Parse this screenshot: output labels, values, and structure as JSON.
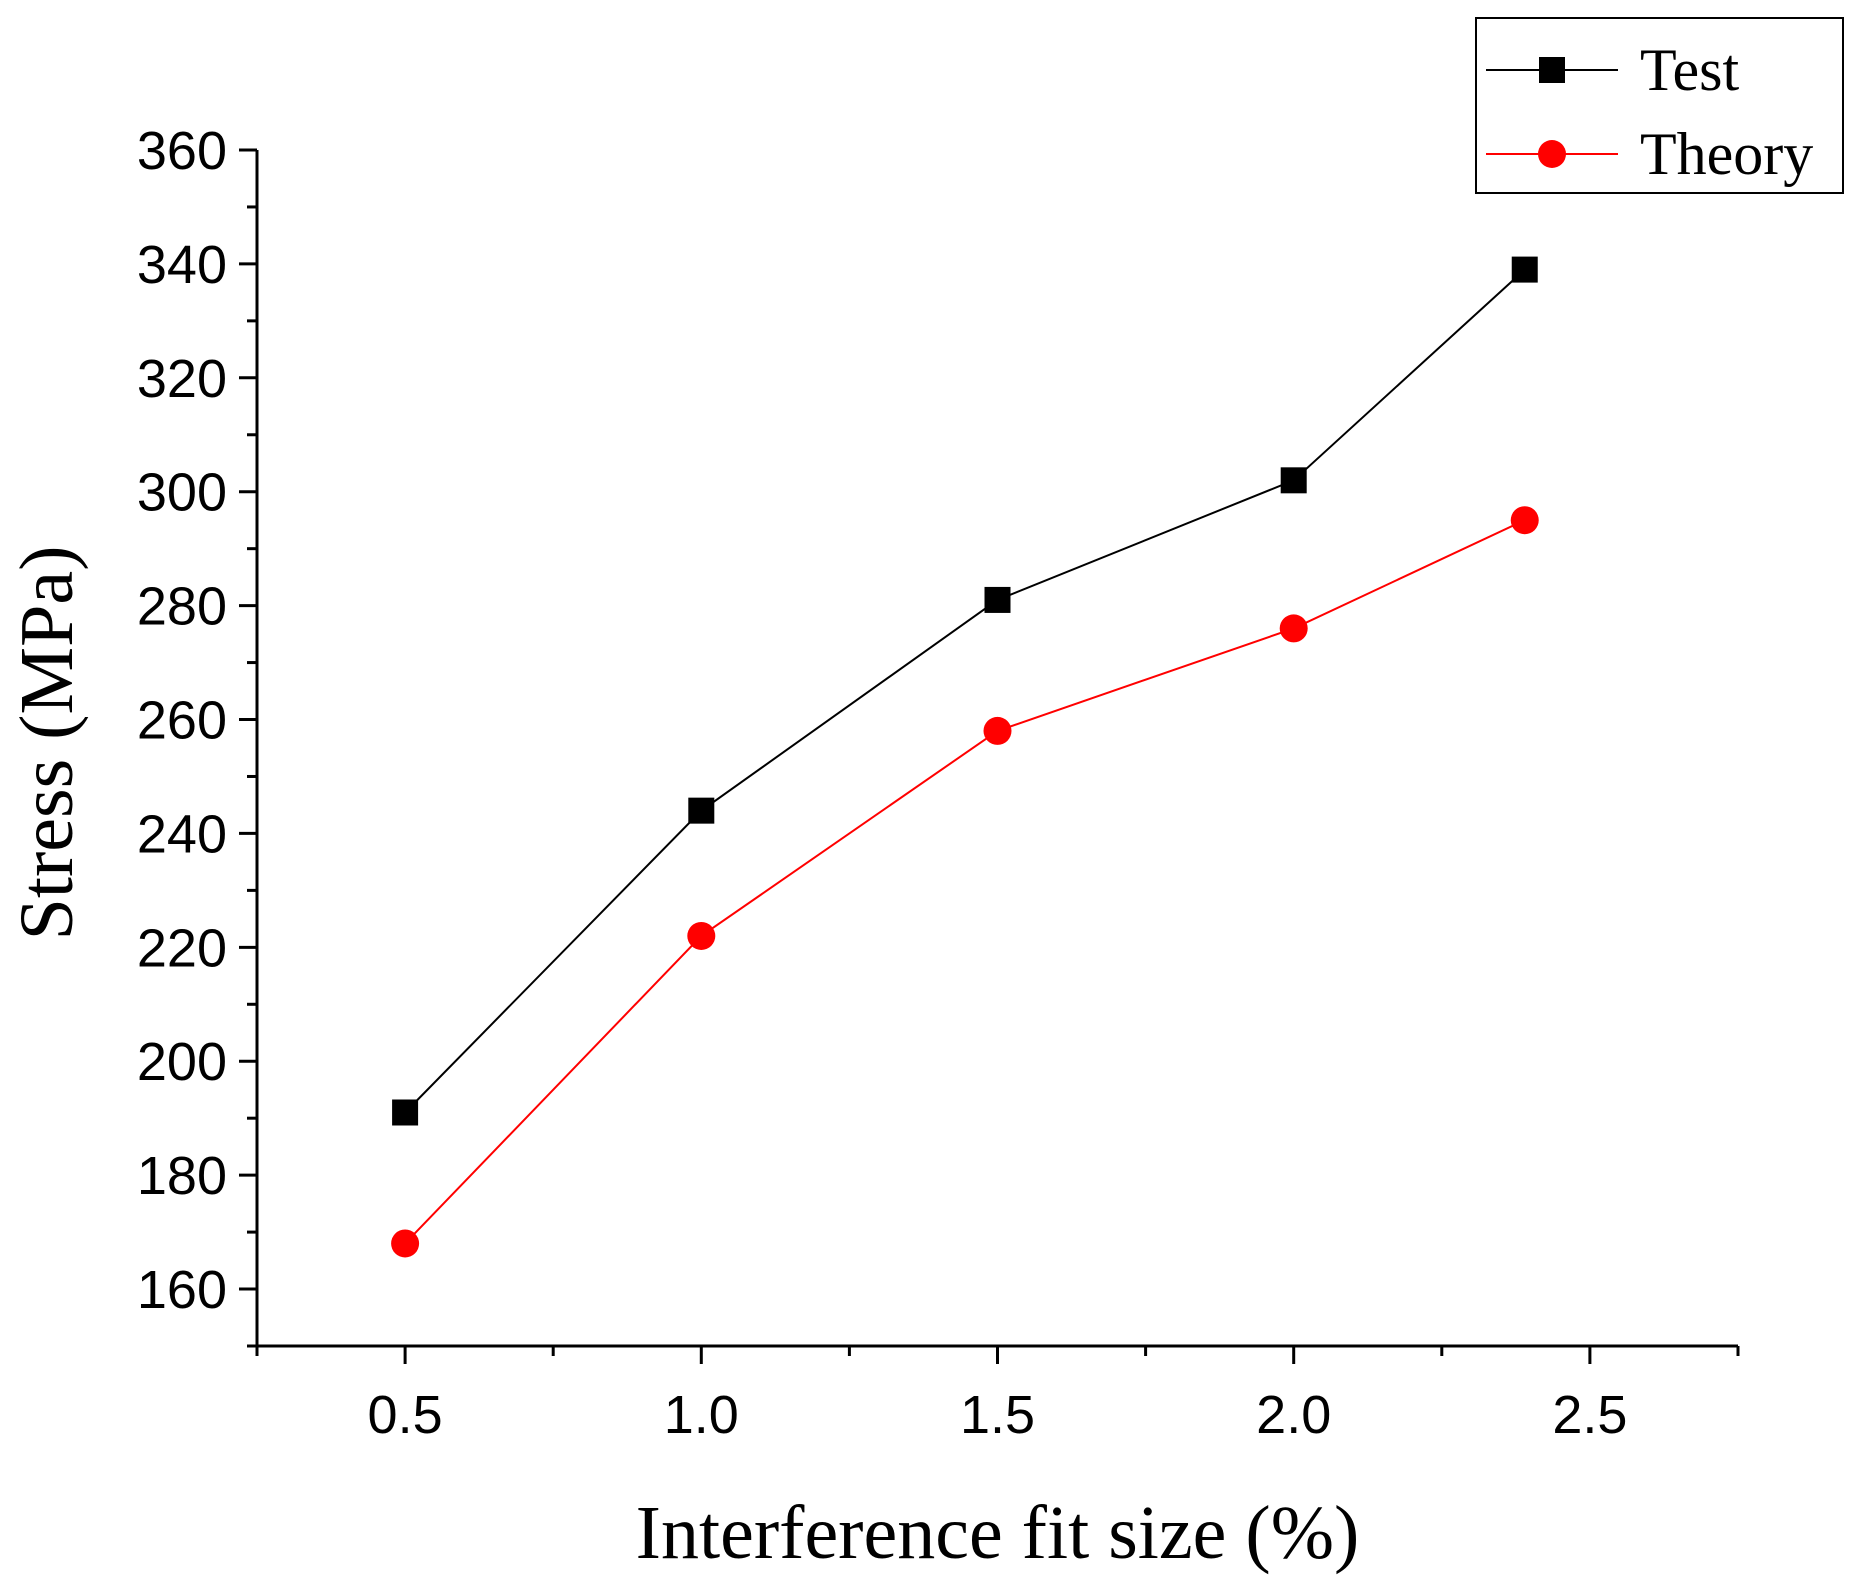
{
  "chart_data": {
    "type": "line",
    "title": "",
    "xlabel": "Interference fit size (%)",
    "ylabel": "Stress (MPa)",
    "xlim": [
      0.25,
      2.75
    ],
    "ylim": [
      150,
      360
    ],
    "x_ticks": [
      "0.5",
      "1.0",
      "1.5",
      "2.0",
      "2.5"
    ],
    "x_tick_values": [
      0.5,
      1.0,
      1.5,
      2.0,
      2.5
    ],
    "y_ticks": [
      "160",
      "180",
      "200",
      "220",
      "240",
      "260",
      "280",
      "300",
      "320",
      "340",
      "360"
    ],
    "y_tick_values": [
      160,
      180,
      200,
      220,
      240,
      260,
      280,
      300,
      320,
      340,
      360
    ],
    "grid": false,
    "legend_position": "top-right",
    "series": [
      {
        "name": "Test",
        "color": "#000000",
        "marker": "square",
        "x": [
          0.5,
          1.0,
          1.5,
          2.0,
          2.39
        ],
        "y": [
          191,
          244,
          281,
          302,
          339
        ]
      },
      {
        "name": "Theory",
        "color": "#ff0000",
        "marker": "circle",
        "x": [
          0.5,
          1.0,
          1.5,
          2.0,
          2.39
        ],
        "y": [
          168,
          222,
          258,
          276,
          295
        ]
      }
    ]
  }
}
